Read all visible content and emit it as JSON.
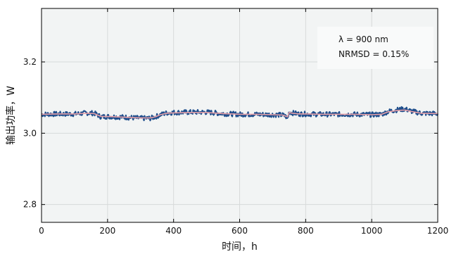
{
  "chart_data": {
    "type": "line",
    "xlabel": "时间，h",
    "ylabel": "输出功率，W",
    "xlim": [
      0,
      1200
    ],
    "ylim": [
      2.75,
      3.35
    ],
    "x_ticks": [
      "0",
      "200",
      "400",
      "600",
      "800",
      "1000",
      "1200"
    ],
    "y_ticks": [
      "2.8",
      "3.0",
      "3.2"
    ],
    "grid": true,
    "annotations": [
      "λ = 900 nm",
      "NRMSD = 0.15%"
    ],
    "colors": {
      "raw": "#1f4e8c",
      "smoothed": "#e8a0a8",
      "plot_bg": "#f2f4f4",
      "grid": "#d7dada"
    },
    "series": [
      {
        "role": "raw",
        "band": 0.007,
        "x": [
          0,
          50,
          100,
          140,
          160,
          180,
          200,
          250,
          300,
          330,
          345,
          360,
          380,
          400,
          450,
          500,
          550,
          600,
          650,
          700,
          730,
          740,
          745,
          750,
          760,
          780,
          800,
          850,
          900,
          950,
          1000,
          1030,
          1050,
          1080,
          1100,
          1120,
          1150,
          1200
        ],
        "y": [
          3.053,
          3.054,
          3.054,
          3.057,
          3.056,
          3.046,
          3.047,
          3.045,
          3.042,
          3.042,
          3.046,
          3.052,
          3.057,
          3.058,
          3.059,
          3.059,
          3.055,
          3.053,
          3.053,
          3.052,
          3.051,
          3.047,
          3.04,
          3.06,
          3.057,
          3.054,
          3.054,
          3.053,
          3.053,
          3.053,
          3.052,
          3.053,
          3.061,
          3.066,
          3.068,
          3.062,
          3.056,
          3.055
        ]
      },
      {
        "role": "smoothed",
        "x": [
          0,
          50,
          100,
          140,
          160,
          180,
          200,
          250,
          300,
          330,
          345,
          360,
          380,
          400,
          450,
          500,
          550,
          600,
          650,
          700,
          730,
          745,
          750,
          760,
          780,
          800,
          850,
          900,
          950,
          1000,
          1030,
          1050,
          1080,
          1100,
          1120,
          1150,
          1200
        ],
        "y": [
          3.053,
          3.054,
          3.054,
          3.056,
          3.055,
          3.047,
          3.047,
          3.045,
          3.043,
          3.043,
          3.046,
          3.052,
          3.056,
          3.057,
          3.058,
          3.058,
          3.055,
          3.053,
          3.053,
          3.052,
          3.051,
          3.046,
          3.058,
          3.056,
          3.054,
          3.054,
          3.053,
          3.053,
          3.053,
          3.052,
          3.053,
          3.06,
          3.064,
          3.065,
          3.061,
          3.056,
          3.055
        ]
      }
    ]
  }
}
